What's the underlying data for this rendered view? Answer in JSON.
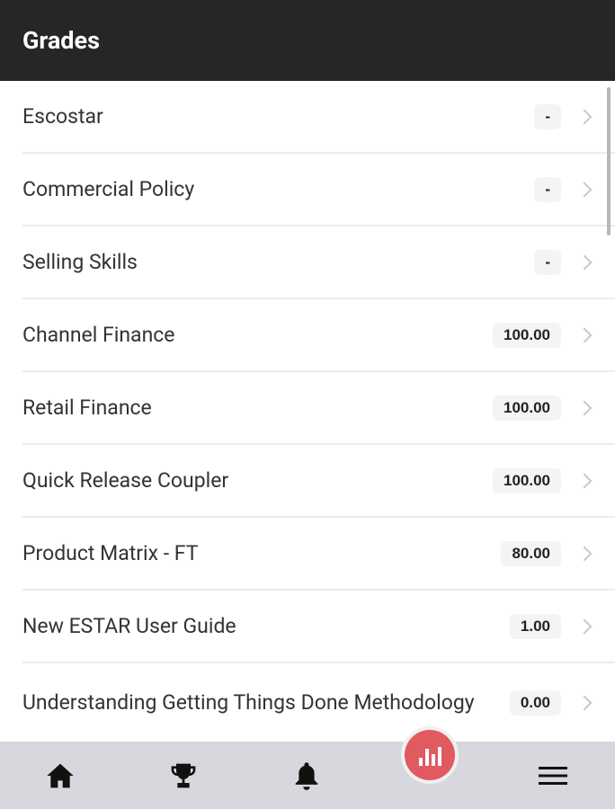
{
  "header": {
    "title": "Grades"
  },
  "grades": [
    {
      "name": "Escostar",
      "score": "-"
    },
    {
      "name": "Commercial Policy",
      "score": "-"
    },
    {
      "name": "Selling Skills",
      "score": "-"
    },
    {
      "name": "Channel Finance",
      "score": "100.00"
    },
    {
      "name": "Retail Finance",
      "score": "100.00"
    },
    {
      "name": "Quick Release Coupler",
      "score": "100.00"
    },
    {
      "name": "Product Matrix - FT",
      "score": "80.00"
    },
    {
      "name": "New ESTAR User Guide",
      "score": "1.00"
    },
    {
      "name": "Understanding Getting Things Done Methodology",
      "score": "0.00"
    }
  ],
  "nav": {
    "items": [
      "home-icon",
      "trophy-icon",
      "bell-icon",
      "grades-chart-icon",
      "menu-icon"
    ],
    "accent": "#e05a5f"
  }
}
